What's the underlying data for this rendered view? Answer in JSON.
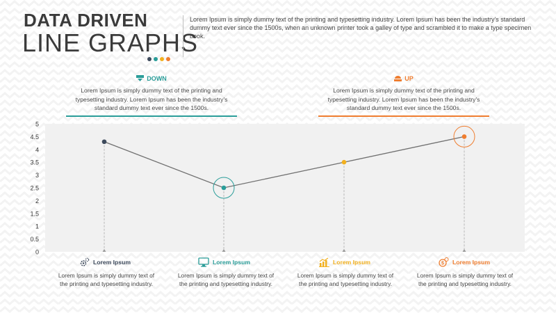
{
  "header": {
    "title_line1": "DATA DRIVEN",
    "title_line2": "LINE GRAPHS",
    "intro_text": "Lorem Ipsum is simply dummy text of the printing and typesetting industry. Lorem Ipsum has been the industry's standard dummy text ever since the 1500s, when an unknown printer took a galley of type and scrambled it to make a type specimen book."
  },
  "colors": {
    "navy": "#3d4a5c",
    "teal": "#2a9d99",
    "yellow": "#f2b01e",
    "orange": "#ef7d2f",
    "line": "#707070",
    "plot_bg": "#f1f1f1"
  },
  "callouts": [
    {
      "label": "DOWN",
      "icon": "down-tray-icon",
      "text": "Lorem Ipsum is simply dummy text of the printing and typesetting industry. Lorem Ipsum has been the industry's standard dummy text ever since the 1500s."
    },
    {
      "label": "UP",
      "icon": "up-tray-icon",
      "text": "Lorem Ipsum is simply dummy text of the printing and typesetting industry. Lorem Ipsum has been the industry's standard dummy text ever since the 1500s."
    }
  ],
  "cards": [
    {
      "title": "Lorem Ipsum",
      "icon": "gears-icon",
      "text": "Lorem Ipsum is simply dummy text of the printing and typesetting industry."
    },
    {
      "title": "Lorem Ipsum",
      "icon": "monitor-icon",
      "text": "Lorem Ipsum is simply dummy text of the printing and typesetting industry."
    },
    {
      "title": "Lorem Ipsum",
      "icon": "bar-chart-icon",
      "text": "Lorem Ipsum is simply dummy text of the printing and typesetting industry."
    },
    {
      "title": "Lorem Ipsum",
      "icon": "money-icon",
      "text": "Lorem Ipsum is simply dummy text of the printing and typesetting industry."
    }
  ],
  "chart_data": {
    "type": "line",
    "x": [
      1,
      2,
      3,
      4
    ],
    "values": [
      4.3,
      2.5,
      3.5,
      4.5
    ],
    "ylim": [
      0,
      5
    ],
    "yticks": [
      "0",
      "0.5",
      "1",
      "1.5",
      "2",
      "2.5",
      "3",
      "3.5",
      "4",
      "4.5",
      "5"
    ],
    "point_colors": [
      "#3d4a5c",
      "#2a9d99",
      "#f2b01e",
      "#ef7d2f"
    ],
    "highlighted_points": [
      1,
      3
    ],
    "grid": false,
    "legend": "none"
  }
}
